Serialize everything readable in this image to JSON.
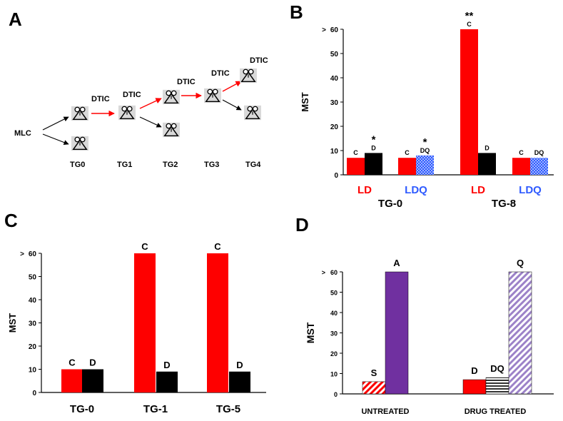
{
  "panel_labels": {
    "a": "A",
    "b": "B",
    "c": "C",
    "d": "D"
  },
  "colors": {
    "red": "#fe0000",
    "black": "#000000",
    "blue": "#2f5bff",
    "purple": "#7030a0",
    "lavender": "#c9b6e4",
    "arrow_red": "#ff0000",
    "highlight": "#d9d9d9"
  },
  "diagram": {
    "type": "lineage diagram",
    "start_label": "MLC",
    "drug_label": "DTIC",
    "generation_labels": [
      "TG0",
      "TG1",
      "TG2",
      "TG3",
      "TG4"
    ],
    "icon_name": "mouse-icon"
  },
  "chart_data": [
    {
      "panel": "B",
      "type": "bar",
      "ylabel": "MST",
      "ymax_marker": ">",
      "ylim": [
        0,
        60
      ],
      "yticks": [
        0,
        10,
        20,
        30,
        40,
        50,
        60
      ],
      "bars": [
        {
          "group": "TG-0",
          "subgroup": "LD",
          "label": "C",
          "value": 7,
          "color": "red"
        },
        {
          "group": "TG-0",
          "subgroup": "LD",
          "label": "D",
          "value": 9,
          "color": "black",
          "marker": "*"
        },
        {
          "group": "TG-0",
          "subgroup": "LDQ",
          "label": "C",
          "value": 7,
          "color": "red"
        },
        {
          "group": "TG-0",
          "subgroup": "LDQ",
          "label": "DQ",
          "value": 8,
          "color": "blue-dotted",
          "marker": "*"
        },
        {
          "group": "TG-8",
          "subgroup": "LD",
          "label": "C",
          "value": 60,
          "color": "red",
          "marker": "**"
        },
        {
          "group": "TG-8",
          "subgroup": "LD",
          "label": "D",
          "value": 9,
          "color": "black"
        },
        {
          "group": "TG-8",
          "subgroup": "LDQ",
          "label": "C",
          "value": 7,
          "color": "red"
        },
        {
          "group": "TG-8",
          "subgroup": "LDQ",
          "label": "DQ",
          "value": 7,
          "color": "blue-dotted"
        }
      ],
      "subgroup_labels": [
        "LD",
        "LDQ",
        "LD",
        "LDQ"
      ],
      "group_labels": [
        "TG-0",
        "TG-8"
      ]
    },
    {
      "panel": "C",
      "type": "bar",
      "ylabel": "MST",
      "ymax_marker": ">",
      "ylim": [
        0,
        60
      ],
      "yticks": [
        0,
        10,
        20,
        30,
        40,
        50,
        60
      ],
      "categories": [
        "TG-0",
        "TG-1",
        "TG-5"
      ],
      "bars": [
        {
          "category": "TG-0",
          "label": "C",
          "value": 10,
          "color": "red"
        },
        {
          "category": "TG-0",
          "label": "D",
          "value": 10,
          "color": "black"
        },
        {
          "category": "TG-1",
          "label": "C",
          "value": 60,
          "color": "red"
        },
        {
          "category": "TG-1",
          "label": "D",
          "value": 9,
          "color": "black"
        },
        {
          "category": "TG-5",
          "label": "C",
          "value": 60,
          "color": "red"
        },
        {
          "category": "TG-5",
          "label": "D",
          "value": 9,
          "color": "black"
        }
      ]
    },
    {
      "panel": "D",
      "type": "bar",
      "ylabel": "MST",
      "ymax_marker": ">",
      "ylim": [
        0,
        60
      ],
      "yticks": [
        0,
        10,
        20,
        30,
        40,
        50,
        60
      ],
      "categories": [
        "UNTREATED",
        "DRUG TREATED"
      ],
      "bars": [
        {
          "category": "UNTREATED",
          "label": "S",
          "value": 6,
          "color": "red-hatched"
        },
        {
          "category": "UNTREATED",
          "label": "A",
          "value": 60,
          "color": "purple"
        },
        {
          "category": "DRUG TREATED",
          "label": "D",
          "value": 7,
          "color": "red"
        },
        {
          "category": "DRUG TREATED",
          "label": "DQ",
          "value": 8,
          "color": "gray-striped"
        },
        {
          "category": "DRUG TREATED",
          "label": "Q",
          "value": 60,
          "color": "lavender-hatched"
        }
      ]
    }
  ]
}
